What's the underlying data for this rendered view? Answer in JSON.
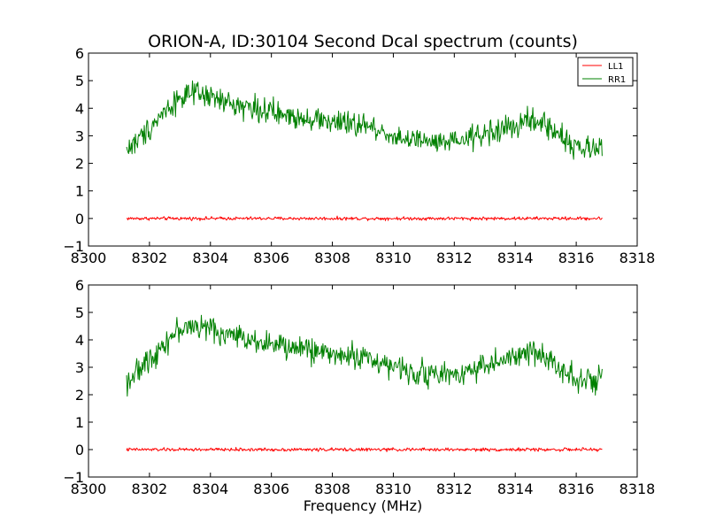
{
  "figure": {
    "title": "ORION-A, ID:30104 Second Dcal spectrum (counts)"
  },
  "chart_data": [
    {
      "type": "line",
      "title": "ORION-A, ID:30104 Second Dcal spectrum (counts)",
      "xlabel": "",
      "ylabel": "",
      "xlim": [
        8300,
        8318
      ],
      "ylim": [
        -1,
        6
      ],
      "xticks": [
        "8300",
        "8302",
        "8304",
        "8306",
        "8308",
        "8310",
        "8312",
        "8314",
        "8316",
        "8318"
      ],
      "yticks": [
        "−1",
        "0",
        "1",
        "2",
        "3",
        "4",
        "5",
        "6"
      ],
      "grid": false,
      "legend": {
        "placement": "top-right",
        "entries": [
          "LL1",
          "RR1"
        ]
      },
      "x_range": [
        8301.25,
        8316.85
      ],
      "series": [
        {
          "name": "LL1",
          "color": "#ff0000",
          "noise": 0.03,
          "profile_x": [
            8301.25,
            8316.85
          ],
          "profile_y": [
            0.0,
            0.0
          ]
        },
        {
          "name": "RR1",
          "color": "#008000",
          "noise": 0.22,
          "profile_x": [
            8301.25,
            8301.6,
            8302.0,
            8302.5,
            8303.0,
            8303.5,
            8304.0,
            8304.5,
            8305.0,
            8305.5,
            8306.0,
            8306.5,
            8307.0,
            8307.5,
            8308.0,
            8308.5,
            8309.0,
            8309.5,
            8310.0,
            8310.5,
            8311.0,
            8311.5,
            8312.0,
            8312.5,
            8313.0,
            8313.5,
            8314.0,
            8314.5,
            8315.0,
            8315.5,
            8316.0,
            8316.5,
            8316.85
          ],
          "profile_y": [
            2.5,
            2.8,
            3.3,
            3.9,
            4.4,
            4.5,
            4.4,
            4.2,
            4.1,
            4.0,
            3.85,
            3.7,
            3.7,
            3.6,
            3.5,
            3.4,
            3.4,
            3.2,
            3.0,
            2.85,
            2.8,
            2.7,
            2.75,
            2.9,
            3.1,
            3.2,
            3.35,
            3.55,
            3.4,
            3.0,
            2.6,
            2.45,
            2.6
          ]
        }
      ]
    },
    {
      "type": "line",
      "title": "",
      "xlabel": "Frequency (MHz)",
      "ylabel": "",
      "xlim": [
        8300,
        8318
      ],
      "ylim": [
        -1,
        6
      ],
      "xticks": [
        "8300",
        "8302",
        "8304",
        "8306",
        "8308",
        "8310",
        "8312",
        "8314",
        "8316",
        "8318"
      ],
      "yticks": [
        "−1",
        "0",
        "1",
        "2",
        "3",
        "4",
        "5",
        "6"
      ],
      "grid": false,
      "x_range": [
        8301.25,
        8316.85
      ],
      "series": [
        {
          "color": "#ff0000",
          "noise": 0.03,
          "profile_x": [
            8301.25,
            8316.85
          ],
          "profile_y": [
            0.0,
            0.0
          ]
        },
        {
          "color": "#008000",
          "noise": 0.22,
          "profile_x": [
            8301.25,
            8301.6,
            8302.0,
            8302.5,
            8303.0,
            8303.5,
            8304.0,
            8304.5,
            8305.0,
            8305.5,
            8306.0,
            8306.5,
            8307.0,
            8307.5,
            8308.0,
            8308.5,
            8309.0,
            8309.5,
            8310.0,
            8310.5,
            8311.0,
            8311.5,
            8312.0,
            8312.5,
            8313.0,
            8313.5,
            8314.0,
            8314.5,
            8315.0,
            8315.5,
            8316.0,
            8316.5,
            8316.85
          ],
          "profile_y": [
            2.5,
            2.8,
            3.3,
            3.9,
            4.4,
            4.5,
            4.4,
            4.2,
            4.1,
            4.0,
            3.85,
            3.7,
            3.7,
            3.6,
            3.5,
            3.4,
            3.4,
            3.2,
            3.0,
            2.85,
            2.8,
            2.7,
            2.75,
            2.9,
            3.1,
            3.2,
            3.35,
            3.55,
            3.4,
            3.0,
            2.6,
            2.45,
            2.6
          ]
        }
      ]
    }
  ]
}
